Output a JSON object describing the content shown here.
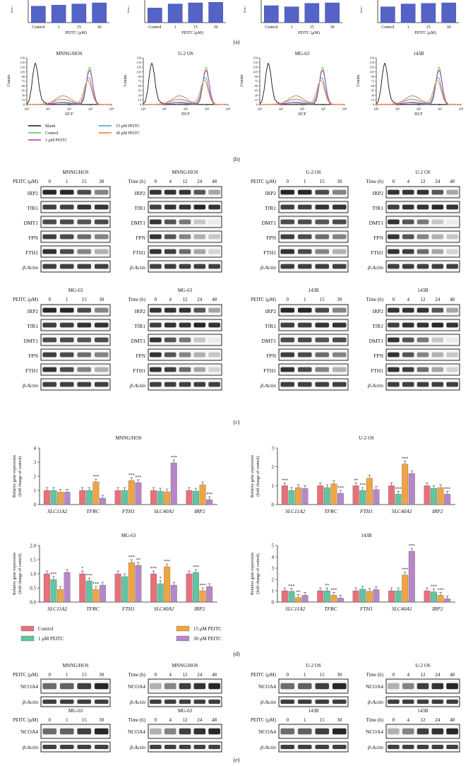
{
  "figure": {
    "panel_labels": {
      "a": "(a)",
      "b": "(b)",
      "c": "(c)",
      "d": "(d)",
      "e": "(e)"
    },
    "panel_a": {
      "charts": [
        {
          "categories": [
            "Control",
            "1",
            "15",
            "30"
          ],
          "values": [
            0.58,
            0.62,
            0.66,
            0.7
          ],
          "xlabel": "PEITC (μM)",
          "ylabel_fragment": "Iron c"
        },
        {
          "categories": [
            "Control",
            "1",
            "15",
            "30"
          ],
          "values": [
            0.52,
            0.66,
            0.7,
            0.72
          ],
          "xlabel": "PEITC (μM)",
          "ylabel_fragment": "Iron c"
        },
        {
          "categories": [
            "Control",
            "1",
            "15",
            "30"
          ],
          "values": [
            0.6,
            0.56,
            0.68,
            0.7
          ],
          "xlabel": "PEITC (μM)",
          "ylabel_fragment": "Iron c"
        },
        {
          "categories": [
            "Control",
            "1",
            "15",
            "30"
          ],
          "values": [
            0.56,
            0.66,
            0.68,
            0.7
          ],
          "xlabel": "PEITC (μM)",
          "ylabel_fragment": "Iron c"
        }
      ]
    },
    "panel_b": {
      "titles": [
        "MNNG/HOS",
        "U-2 OS",
        "MG-63",
        "143B"
      ],
      "ylabel": "Counts",
      "xlabel": "DCF",
      "yticks": [
        "0",
        "15",
        "30",
        "45",
        "60",
        "75",
        "90",
        "105",
        "120",
        "135",
        "150"
      ],
      "xticks": [
        "10⁰",
        "10¹",
        "10²",
        "10³",
        "10⁴"
      ],
      "legend": [
        {
          "label": "Blank",
          "color": "#111111"
        },
        {
          "label": "Control",
          "color": "#5cc44a"
        },
        {
          "label": "1 μM PEITC",
          "color": "#c2299c"
        },
        {
          "label": "15 μM PEITC",
          "color": "#3a9bd9"
        },
        {
          "label": "30 μM PEITC",
          "color": "#ef7a2e"
        }
      ]
    },
    "panel_c": {
      "dose_header": "PEITC (μM)",
      "dose_values": [
        "0",
        "1",
        "15",
        "30"
      ],
      "time_header": "Time (h)",
      "time_values": [
        "0",
        "4",
        "12",
        "24",
        "48"
      ],
      "cell_lines": [
        "MNNG/HOS",
        "U-2 OS",
        "MG-63",
        "143B"
      ],
      "proteins": [
        "IRP2",
        "TfR1",
        "DMT1",
        "FPN",
        "FTH1",
        "β-Actin"
      ]
    },
    "panel_d": {
      "ylabel": "Relative gene expression",
      "ylabel2": "(fold change of control)",
      "genes": [
        "SLC11A2",
        "TFRC",
        "FTH1",
        "SLC40A1",
        "IRP2"
      ],
      "series_colors": [
        "#e8707a",
        "#62c4a0",
        "#f0a443",
        "#b687c6"
      ],
      "legend": [
        "Control",
        "1 μM PEITC",
        "15 μM PEITC",
        "30 μM PEITC"
      ],
      "charts": [
        {
          "title": "MNNG/HOS",
          "ymax": 4,
          "yticks": [
            "0",
            "1",
            "2",
            "3",
            "4"
          ],
          "values": [
            [
              1.0,
              1.0,
              1.0,
              1.0,
              1.0
            ],
            [
              1.0,
              1.0,
              1.0,
              0.95,
              0.95
            ],
            [
              0.88,
              1.6,
              1.7,
              0.9,
              1.4
            ],
            [
              0.88,
              0.45,
              1.55,
              2.95,
              0.35
            ]
          ],
          "stars": [
            [
              "",
              "",
              "",
              ""
            ],
            [
              "",
              "",
              "***",
              ""
            ],
            [
              "",
              "",
              "***",
              "***"
            ],
            [
              "",
              "",
              "",
              "***"
            ],
            [
              "",
              "",
              "",
              "***"
            ]
          ]
        },
        {
          "title": "U-2 OS",
          "ymax": 3,
          "yticks": [
            "0",
            "1",
            "2",
            "3"
          ],
          "values": [
            [
              1.0,
              1.0,
              1.0,
              1.0,
              1.0
            ],
            [
              0.75,
              0.9,
              0.75,
              0.55,
              0.85
            ],
            [
              0.9,
              1.1,
              1.4,
              2.15,
              0.9
            ],
            [
              0.85,
              0.6,
              0.8,
              1.65,
              0.55
            ]
          ],
          "stars": [
            [
              "***",
              "",
              "",
              ""
            ],
            [
              "",
              "",
              "",
              "***"
            ],
            [
              "**",
              "***",
              "",
              ""
            ],
            [
              "",
              "***",
              "***",
              ""
            ],
            [
              "",
              "",
              "",
              "***"
            ]
          ]
        },
        {
          "title": "MG-63",
          "ymax": 2.0,
          "yticks": [
            "0.0",
            "0.5",
            "1.0",
            "1.5",
            "2.0"
          ],
          "values": [
            [
              1.0,
              1.0,
              1.0,
              1.0,
              1.0
            ],
            [
              0.8,
              0.75,
              0.9,
              0.65,
              1.05
            ],
            [
              0.45,
              0.45,
              1.4,
              1.25,
              0.4
            ],
            [
              1.05,
              0.6,
              1.3,
              0.6,
              0.55
            ]
          ],
          "stars": [
            [
              "",
              "***",
              "",
              ""
            ],
            [
              "*",
              "***",
              "***",
              ""
            ],
            [
              "",
              "",
              "***",
              "**"
            ],
            [
              "***",
              "*",
              "***",
              ""
            ],
            [
              "",
              "***",
              "***",
              ""
            ]
          ]
        },
        {
          "title": "143B",
          "ymax": 5,
          "yticks": [
            "0",
            "1",
            "2",
            "3",
            "4",
            "5"
          ],
          "values": [
            [
              1.0,
              1.0,
              1.0,
              1.0,
              1.0
            ],
            [
              0.95,
              1.0,
              1.15,
              1.0,
              0.9
            ],
            [
              0.4,
              0.6,
              0.95,
              2.4,
              0.6
            ],
            [
              0.6,
              0.35,
              1.1,
              4.5,
              0.3
            ]
          ],
          "stars": [
            [
              "",
              "***",
              "**",
              ""
            ],
            [
              "",
              "**",
              "***",
              ""
            ],
            [
              "",
              "",
              "",
              ""
            ],
            [
              "",
              "",
              "***",
              "***"
            ],
            [
              "",
              "***",
              "***",
              ""
            ]
          ]
        }
      ]
    },
    "panel_e": {
      "protein": "NCOA4",
      "control": "β-Actin",
      "dose_header": "PEITC (μM)",
      "dose_values": [
        "0",
        "1",
        "15",
        "30"
      ],
      "time_header": "Time (h)",
      "time_values": [
        "0",
        "4",
        "12",
        "24",
        "48"
      ],
      "cell_lines": [
        "MNNG/HOS",
        "U-2 OS",
        "MG-63",
        "143B"
      ]
    }
  }
}
